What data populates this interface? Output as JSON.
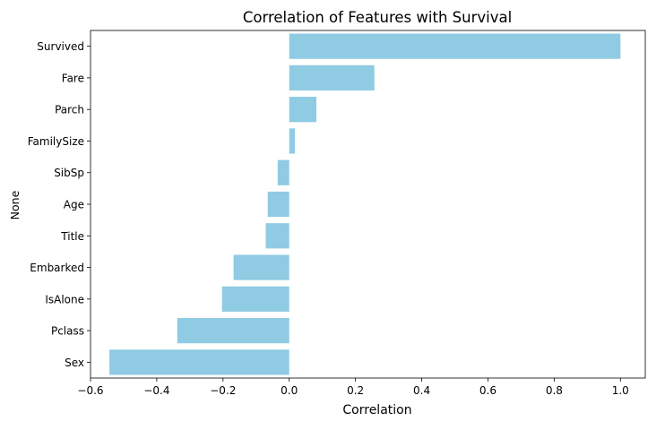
{
  "chart_data": {
    "type": "bar",
    "orientation": "horizontal",
    "title": "Correlation of Features with Survival",
    "xlabel": "Correlation",
    "ylabel": "None",
    "categories": [
      "Survived",
      "Fare",
      "Parch",
      "FamilySize",
      "SibSp",
      "Age",
      "Title",
      "Embarked",
      "IsAlone",
      "Pclass",
      "Sex"
    ],
    "values": [
      1.0,
      0.257,
      0.082,
      0.017,
      -0.035,
      -0.065,
      -0.071,
      -0.168,
      -0.203,
      -0.338,
      -0.543
    ],
    "xlim": [
      -0.6,
      1.075
    ],
    "xticks": [
      -0.6,
      -0.4,
      -0.2,
      0.0,
      0.2,
      0.4,
      0.6,
      0.8,
      1.0
    ],
    "xtick_labels": [
      "−0.6",
      "−0.4",
      "−0.2",
      "0.0",
      "0.2",
      "0.4",
      "0.6",
      "0.8",
      "1.0"
    ],
    "grid": false,
    "legend": "none",
    "bar_color": "#8fcbe3",
    "axis_color": "#000000"
  }
}
